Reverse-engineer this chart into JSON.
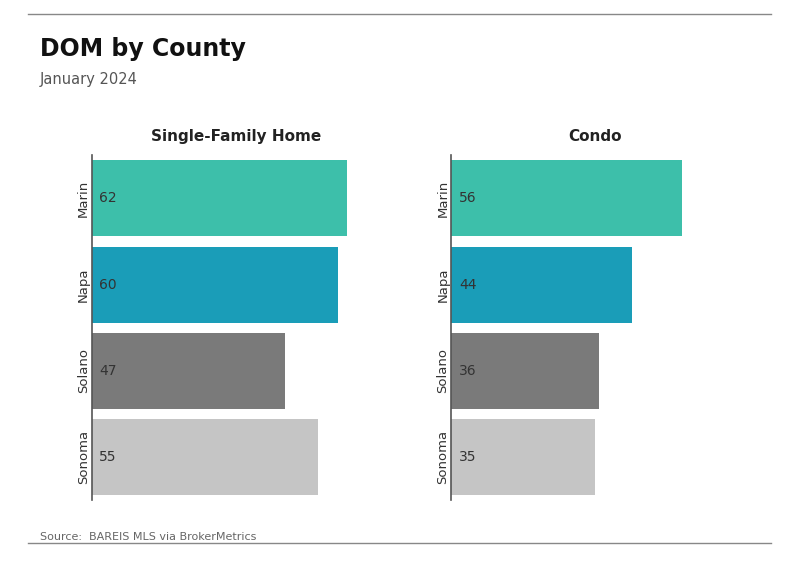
{
  "title": "DOM by County",
  "subtitle": "January 2024",
  "source": "Source:  BAREIS MLS via BrokerMetrics",
  "categories": [
    "Marin",
    "Napa",
    "Solano",
    "Sonoma"
  ],
  "sfh_values": [
    62,
    60,
    47,
    55
  ],
  "condo_values": [
    56,
    44,
    36,
    35
  ],
  "sfh_title": "Single-Family Home",
  "condo_title": "Condo",
  "bar_colors": [
    "#3dbfaa",
    "#1a9db8",
    "#7a7a7a",
    "#c5c5c5"
  ],
  "background_color": "#ffffff",
  "xlim_sfh": [
    0,
    70
  ],
  "xlim_condo": [
    0,
    70
  ],
  "value_label_color": "#333333",
  "axis_line_color": "#555555",
  "title_color": "#111111",
  "subtitle_color": "#555555",
  "source_color": "#666666"
}
